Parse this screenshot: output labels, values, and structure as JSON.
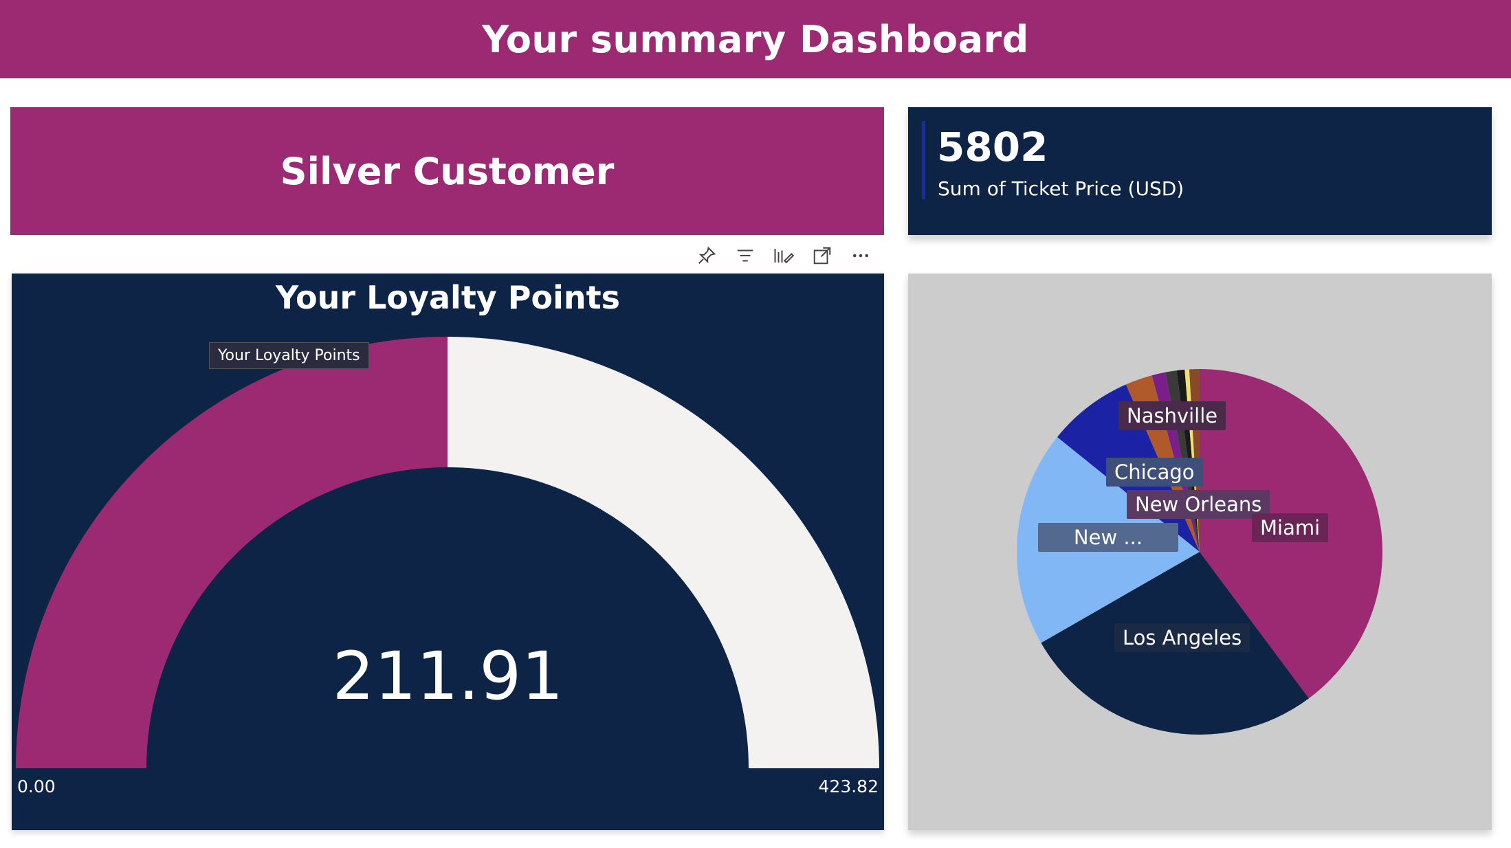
{
  "header": {
    "title": "Your summary Dashboard"
  },
  "customer_card": {
    "label": "Silver Customer"
  },
  "kpi": {
    "value": "5802",
    "label": "Sum of Ticket Price (USD)"
  },
  "toolbar": {
    "icons": [
      "pin-icon",
      "filter-icon",
      "format-visual-icon",
      "focus-mode-icon",
      "more-options-icon"
    ]
  },
  "gauge": {
    "title": "Your Loyalty Points",
    "value_label": "211.91",
    "min_label": "0.00",
    "max_label": "423.82",
    "tooltip": "Your Loyalty Points",
    "colors": {
      "fill": "#9b2a72",
      "track": "#f3f2f1",
      "background": "#0d2447"
    }
  },
  "chart_data": [
    {
      "type": "gauge",
      "title": "Your Loyalty Points",
      "value": 211.91,
      "min": 0.0,
      "max": 423.82
    },
    {
      "type": "pie",
      "categories": [
        "Miami",
        "Los Angeles",
        "New ...",
        "Chicago",
        "Nashville",
        "",
        "",
        "",
        "",
        "New Orleans"
      ],
      "values": [
        39.8,
        26.9,
        19.1,
        7.6,
        2.4,
        1.2,
        1.0,
        0.7,
        0.4,
        0.9
      ],
      "colors": [
        "#9b2a72",
        "#0d2447",
        "#82b7f5",
        "#1b22a3",
        "#b05a2c",
        "#7a1f8a",
        "#3a3a3a",
        "#1a1a1a",
        "#f0e070",
        "#8a4a2a"
      ],
      "labels_shown": [
        "Miami",
        "Los Angeles",
        "New ...",
        "Chicago",
        "Nashville",
        "New Orleans"
      ]
    }
  ]
}
